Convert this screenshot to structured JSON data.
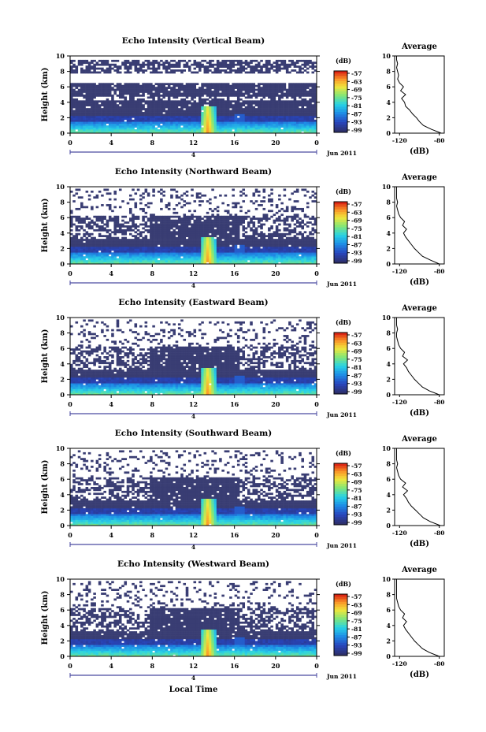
{
  "figure": {
    "xlabel": "Local Time"
  },
  "chart_data": [
    {
      "type": "heatmap",
      "title": "Echo Intensity (Vertical Beam)",
      "xlabel": "",
      "ylabel": "Height (km)",
      "xlim": [
        0,
        24
      ],
      "ylim": [
        0,
        10
      ],
      "x_ticks": [
        "0",
        "4",
        "8",
        "12",
        "16",
        "20",
        "0"
      ],
      "y_ticks": [
        "0",
        "2",
        "4",
        "6",
        "8",
        "10"
      ],
      "date_marker": "4",
      "date_label": "Jun 2011",
      "colorbar": {
        "unit": "(dB)",
        "ticks": [
          "-57",
          "-63",
          "-69",
          "-75",
          "-81",
          "-87",
          "-93",
          "-99"
        ]
      },
      "profile": {
        "title": "Average",
        "xlabel": "(dB)",
        "x_ticks": [
          "-120",
          "-80"
        ],
        "xlim": [
          -125,
          -75
        ],
        "heights": [
          0,
          0.5,
          1,
          1.5,
          2,
          2.5,
          3,
          3.5,
          4,
          4.5,
          5,
          5.5,
          6,
          6.5,
          7,
          7.5,
          8,
          8.5,
          9,
          9.5,
          10
        ],
        "values": [
          -78,
          -88,
          -96,
          -100,
          -103,
          -107,
          -110,
          -114,
          -115,
          -118,
          -114,
          -119,
          -116,
          -120,
          -122,
          -121,
          -122,
          -123,
          -122,
          -123,
          -123
        ]
      }
    },
    {
      "type": "heatmap",
      "title": "Echo Intensity (Northward Beam)",
      "xlabel": "",
      "ylabel": "Height (km)",
      "xlim": [
        0,
        24
      ],
      "ylim": [
        0,
        10
      ],
      "x_ticks": [
        "0",
        "4",
        "8",
        "12",
        "16",
        "20",
        "0"
      ],
      "y_ticks": [
        "0",
        "2",
        "4",
        "6",
        "8",
        "10"
      ],
      "date_marker": "4",
      "date_label": "Jun 2011",
      "colorbar": {
        "unit": "(dB)",
        "ticks": [
          "-57",
          "-63",
          "-69",
          "-75",
          "-81",
          "-87",
          "-93",
          "-99"
        ]
      },
      "profile": {
        "title": "Average",
        "xlabel": "(dB)",
        "x_ticks": [
          "-120",
          "-80"
        ],
        "xlim": [
          -125,
          -75
        ],
        "heights": [
          0,
          0.5,
          1,
          1.5,
          2,
          2.5,
          3,
          3.5,
          4,
          4.5,
          5,
          5.5,
          6,
          6.5,
          7,
          7.5,
          8,
          8.5,
          9,
          9.5,
          10
        ],
        "values": [
          -80,
          -89,
          -97,
          -101,
          -105,
          -108,
          -111,
          -114,
          -116,
          -113,
          -117,
          -115,
          -119,
          -121,
          -122,
          -123,
          -122,
          -123,
          -123,
          -123,
          -123
        ]
      }
    },
    {
      "type": "heatmap",
      "title": "Echo Intensity (Eastward Beam)",
      "xlabel": "",
      "ylabel": "Height (km)",
      "xlim": [
        0,
        24
      ],
      "ylim": [
        0,
        10
      ],
      "x_ticks": [
        "0",
        "4",
        "8",
        "12",
        "16",
        "20",
        "0"
      ],
      "y_ticks": [
        "0",
        "2",
        "4",
        "6",
        "8",
        "10"
      ],
      "date_marker": "4",
      "date_label": "Jun 2011",
      "colorbar": {
        "unit": "(dB)",
        "ticks": [
          "-57",
          "-63",
          "-69",
          "-75",
          "-81",
          "-87",
          "-93",
          "-99"
        ]
      },
      "profile": {
        "title": "Average",
        "xlabel": "(dB)",
        "x_ticks": [
          "-120",
          "-80"
        ],
        "xlim": [
          -125,
          -75
        ],
        "heights": [
          0,
          0.5,
          1,
          1.5,
          2,
          2.5,
          3,
          3.5,
          4,
          4.5,
          5,
          5.5,
          6,
          6.5,
          7,
          7.5,
          8,
          8.5,
          9,
          9.5,
          10
        ],
        "values": [
          -80,
          -90,
          -97,
          -101,
          -105,
          -108,
          -111,
          -113,
          -116,
          -112,
          -117,
          -115,
          -119,
          -121,
          -122,
          -123,
          -123,
          -122,
          -123,
          -123,
          -123
        ]
      }
    },
    {
      "type": "heatmap",
      "title": "Echo Intensity (Southward Beam)",
      "xlabel": "",
      "ylabel": "Height (km)",
      "xlim": [
        0,
        24
      ],
      "ylim": [
        0,
        10
      ],
      "x_ticks": [
        "0",
        "4",
        "8",
        "12",
        "16",
        "20",
        "0"
      ],
      "y_ticks": [
        "0",
        "2",
        "4",
        "6",
        "8",
        "10"
      ],
      "date_marker": "4",
      "date_label": "Jun 2011",
      "colorbar": {
        "unit": "(dB)",
        "ticks": [
          "-57",
          "-63",
          "-69",
          "-75",
          "-81",
          "-87",
          "-93",
          "-99"
        ]
      },
      "profile": {
        "title": "Average",
        "xlabel": "(dB)",
        "x_ticks": [
          "-120",
          "-80"
        ],
        "xlim": [
          -125,
          -75
        ],
        "heights": [
          0,
          0.5,
          1,
          1.5,
          2,
          2.5,
          3,
          3.5,
          4,
          4.5,
          5,
          5.5,
          6,
          6.5,
          7,
          7.5,
          8,
          8.5,
          9,
          9.5,
          10
        ],
        "values": [
          -79,
          -89,
          -96,
          -100,
          -104,
          -108,
          -111,
          -113,
          -116,
          -112,
          -117,
          -114,
          -119,
          -121,
          -122,
          -123,
          -122,
          -123,
          -123,
          -123,
          -123
        ]
      }
    },
    {
      "type": "heatmap",
      "title": "Echo Intensity (Westward Beam)",
      "xlabel": "",
      "ylabel": "Height (km)",
      "xlim": [
        0,
        24
      ],
      "ylim": [
        0,
        10
      ],
      "x_ticks": [
        "0",
        "4",
        "8",
        "12",
        "16",
        "20",
        "0"
      ],
      "y_ticks": [
        "0",
        "2",
        "4",
        "6",
        "8",
        "10"
      ],
      "date_marker": "4",
      "date_label": "Jun 2011",
      "colorbar": {
        "unit": "(dB)",
        "ticks": [
          "-57",
          "-63",
          "-69",
          "-75",
          "-81",
          "-87",
          "-93",
          "-99"
        ]
      },
      "profile": {
        "title": "Average",
        "xlabel": "(dB)",
        "x_ticks": [
          "-120",
          "-80"
        ],
        "xlim": [
          -125,
          -75
        ],
        "heights": [
          0,
          0.5,
          1,
          1.5,
          2,
          2.5,
          3,
          3.5,
          4,
          4.5,
          5,
          5.5,
          6,
          6.5,
          7,
          7.5,
          8,
          8.5,
          9,
          9.5,
          10
        ],
        "values": [
          -80,
          -90,
          -97,
          -101,
          -105,
          -108,
          -111,
          -114,
          -116,
          -113,
          -117,
          -115,
          -119,
          -121,
          -122,
          -123,
          -123,
          -123,
          -123,
          -123,
          -123
        ]
      }
    }
  ]
}
